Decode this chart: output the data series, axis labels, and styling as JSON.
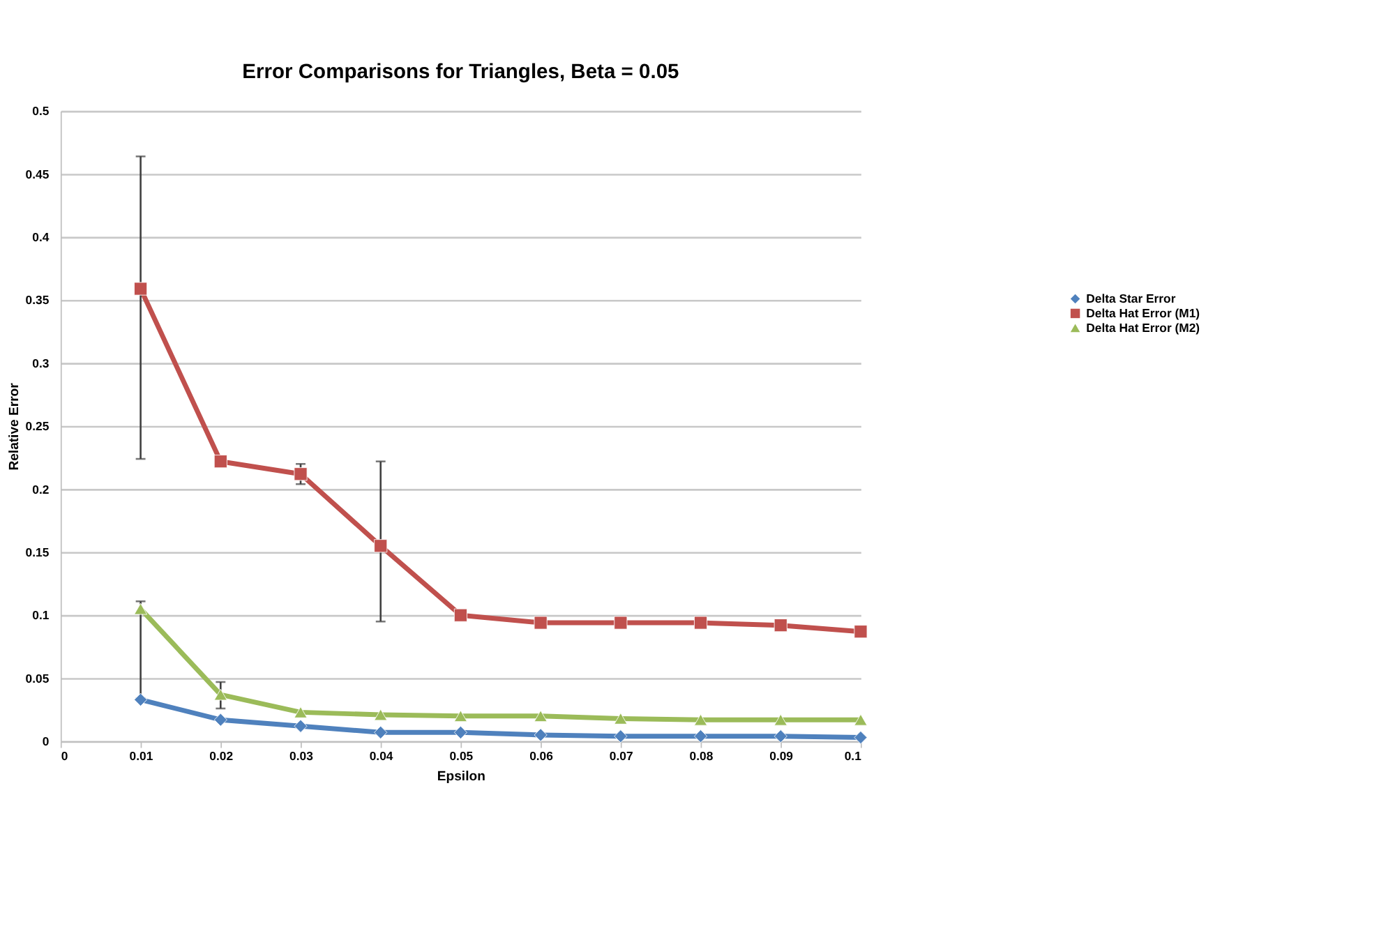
{
  "chart_data": {
    "type": "line",
    "title": "Error Comparisons for Triangles, Beta = 0.05",
    "xlabel": "Epsilon",
    "ylabel": "Relative Error",
    "x": [
      0.01,
      0.02,
      0.03,
      0.04,
      0.05,
      0.06,
      0.07,
      0.08,
      0.09,
      0.1
    ],
    "series": [
      {
        "name": "Delta Star Error",
        "color": "#4f81bd",
        "marker": "diamond",
        "values": [
          0.033,
          0.017,
          0.012,
          0.007,
          0.007,
          0.005,
          0.004,
          0.004,
          0.004,
          0.003
        ]
      },
      {
        "name": "Delta Hat Error (M1)",
        "color": "#c0504d",
        "marker": "square",
        "values": [
          0.359,
          0.222,
          0.212,
          0.155,
          0.1,
          0.094,
          0.094,
          0.094,
          0.092,
          0.087
        ],
        "errors": [
          [
            0.224,
            0.464
          ],
          null,
          [
            0.204,
            0.22
          ],
          [
            0.095,
            0.222
          ],
          null,
          null,
          null,
          null,
          null,
          null
        ]
      },
      {
        "name": "Delta Hat Error (M2)",
        "color": "#9bbb59",
        "marker": "triangle",
        "values": [
          0.105,
          0.037,
          0.023,
          0.021,
          0.02,
          0.02,
          0.018,
          0.017,
          0.017,
          0.017
        ],
        "errors": [
          [
            0.034,
            0.111
          ],
          [
            0.026,
            0.047
          ],
          null,
          null,
          null,
          null,
          null,
          null,
          null,
          null
        ]
      }
    ],
    "xlim": [
      0,
      0.1
    ],
    "xticks": [
      0,
      0.01,
      0.02,
      0.03,
      0.04,
      0.05,
      0.06,
      0.07,
      0.08,
      0.09,
      0.1
    ],
    "ylim": [
      0,
      0.5
    ],
    "yticks": [
      0,
      0.05,
      0.1,
      0.15,
      0.2,
      0.25,
      0.3,
      0.35,
      0.4,
      0.45,
      0.5
    ],
    "grid": "y",
    "legend": "right",
    "line_style": "solid"
  }
}
